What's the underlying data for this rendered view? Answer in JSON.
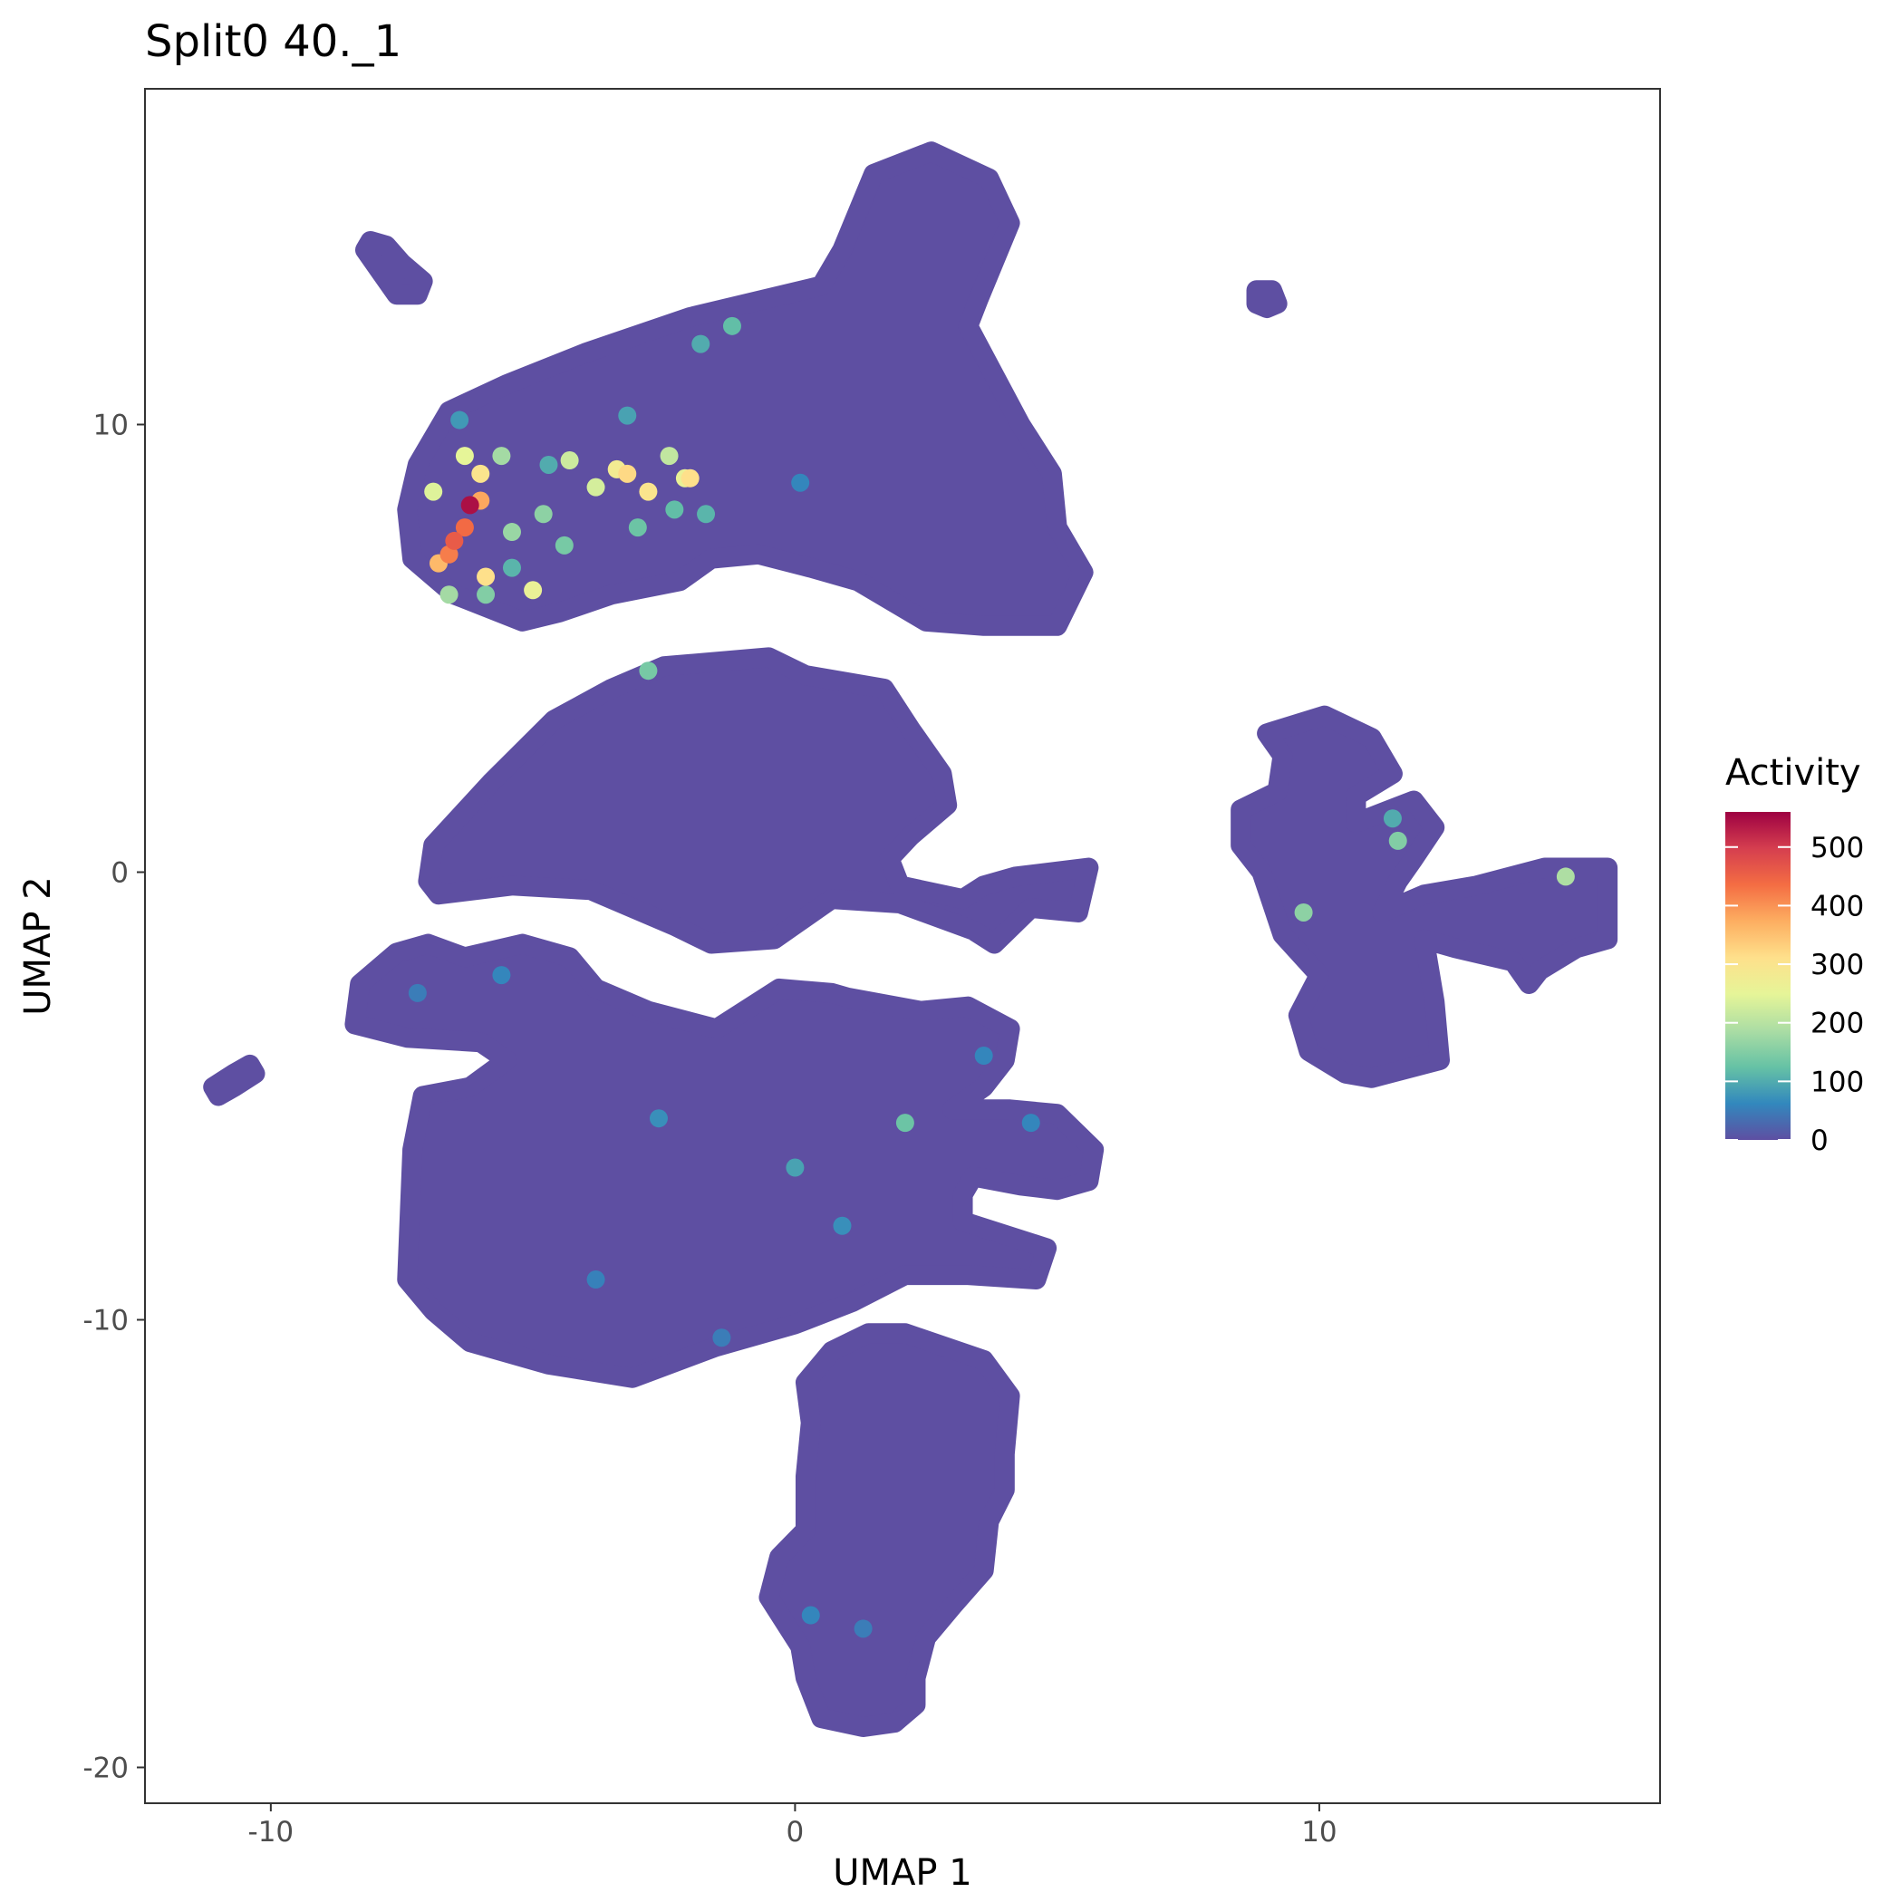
{
  "chart_data": {
    "type": "scatter",
    "title": "Split0 40._1",
    "xlabel": "UMAP 1",
    "ylabel": "UMAP 2",
    "xlim": [
      -12.4,
      16.5
    ],
    "ylim": [
      -20.8,
      17.5
    ],
    "x_ticks": [
      -10,
      0,
      10
    ],
    "y_ticks": [
      -20,
      -10,
      0,
      10
    ],
    "x_tick_labels": [
      "-10",
      "0",
      "10"
    ],
    "y_tick_labels": [
      "-20",
      "-10",
      "0",
      "10"
    ],
    "grid": false,
    "legend": {
      "title": "Activity",
      "position": "right",
      "scale": "Spectral (purple→blue→green→yellow→orange→red)",
      "min": 0,
      "max": 560,
      "breaks": [
        0,
        100,
        200,
        300,
        400,
        500
      ],
      "break_labels": [
        "0",
        "100",
        "200",
        "300",
        "400",
        "500"
      ],
      "colors": [
        "#5E4FA2",
        "#3288BD",
        "#66C2A5",
        "#ABDDA4",
        "#E6F598",
        "#FEE08B",
        "#FDAE61",
        "#F46D43",
        "#D53E4F",
        "#9E0142"
      ]
    },
    "point_color_base": "#5E4FA2",
    "clusters": [
      {
        "name": "upper",
        "polygon": [
          [
            -7.2,
            9.1
          ],
          [
            -6.6,
            10.3
          ],
          [
            -5.5,
            10.9
          ],
          [
            -4.0,
            11.6
          ],
          [
            -2.0,
            12.4
          ],
          [
            0.5,
            13.1
          ],
          [
            0.9,
            13.9
          ],
          [
            1.5,
            15.6
          ],
          [
            2.6,
            16.1
          ],
          [
            3.7,
            15.5
          ],
          [
            4.1,
            14.5
          ],
          [
            3.5,
            12.8
          ],
          [
            3.3,
            12.2
          ],
          [
            4.3,
            10.0
          ],
          [
            4.9,
            8.9
          ],
          [
            5.0,
            7.7
          ],
          [
            5.5,
            6.7
          ],
          [
            5.0,
            5.5
          ],
          [
            3.6,
            5.5
          ],
          [
            2.5,
            5.6
          ],
          [
            1.2,
            6.5
          ],
          [
            0.3,
            6.8
          ],
          [
            -0.7,
            7.1
          ],
          [
            -1.6,
            7.0
          ],
          [
            -2.2,
            6.5
          ],
          [
            -3.5,
            6.2
          ],
          [
            -4.5,
            5.8
          ],
          [
            -5.2,
            5.6
          ],
          [
            -6.5,
            6.2
          ],
          [
            -7.3,
            7.0
          ],
          [
            -7.4,
            8.1
          ]
        ]
      },
      {
        "name": "middle",
        "polygon": [
          [
            -6.9,
            0.6
          ],
          [
            -5.8,
            2.0
          ],
          [
            -4.6,
            3.4
          ],
          [
            -3.5,
            4.1
          ],
          [
            -2.5,
            4.6
          ],
          [
            -0.5,
            4.8
          ],
          [
            0.2,
            4.4
          ],
          [
            1.7,
            4.1
          ],
          [
            2.2,
            3.2
          ],
          [
            2.8,
            2.2
          ],
          [
            2.9,
            1.5
          ],
          [
            2.2,
            0.8
          ],
          [
            1.8,
            0.3
          ],
          [
            2.0,
            -0.3
          ],
          [
            3.2,
            -0.6
          ],
          [
            3.6,
            -0.3
          ],
          [
            4.2,
            -0.1
          ],
          [
            5.6,
            0.1
          ],
          [
            5.4,
            -0.9
          ],
          [
            4.5,
            -0.8
          ],
          [
            3.8,
            -1.6
          ],
          [
            3.4,
            -1.3
          ],
          [
            2.0,
            -0.7
          ],
          [
            0.7,
            -0.6
          ],
          [
            -0.4,
            -1.5
          ],
          [
            -1.6,
            -1.6
          ],
          [
            -2.3,
            -1.2
          ],
          [
            -3.9,
            -0.4
          ],
          [
            -5.4,
            -0.3
          ],
          [
            -6.8,
            -0.5
          ],
          [
            -7.0,
            -0.2
          ]
        ]
      },
      {
        "name": "lower",
        "polygon": [
          [
            -8.3,
            -2.5
          ],
          [
            -7.6,
            -1.8
          ],
          [
            -7.0,
            -1.6
          ],
          [
            -6.3,
            -1.9
          ],
          [
            -5.2,
            -1.6
          ],
          [
            -4.3,
            -1.9
          ],
          [
            -3.8,
            -2.6
          ],
          [
            -2.8,
            -3.1
          ],
          [
            -1.5,
            -3.5
          ],
          [
            -0.3,
            -2.6
          ],
          [
            0.7,
            -2.7
          ],
          [
            1.0,
            -2.8
          ],
          [
            2.4,
            -3.1
          ],
          [
            3.3,
            -3.0
          ],
          [
            4.1,
            -3.5
          ],
          [
            4.0,
            -4.2
          ],
          [
            3.6,
            -4.8
          ],
          [
            3.0,
            -5.3
          ],
          [
            4.1,
            -5.3
          ],
          [
            5.0,
            -5.4
          ],
          [
            5.7,
            -6.2
          ],
          [
            5.6,
            -6.9
          ],
          [
            5.0,
            -7.1
          ],
          [
            4.3,
            -7.0
          ],
          [
            3.4,
            -6.8
          ],
          [
            3.2,
            -7.2
          ],
          [
            3.2,
            -7.8
          ],
          [
            4.8,
            -8.4
          ],
          [
            4.6,
            -9.1
          ],
          [
            3.3,
            -9.0
          ],
          [
            2.1,
            -9.0
          ],
          [
            1.1,
            -9.6
          ],
          [
            0.0,
            -10.1
          ],
          [
            -1.5,
            -10.6
          ],
          [
            -3.1,
            -11.3
          ],
          [
            -4.7,
            -11.0
          ],
          [
            -6.2,
            -10.5
          ],
          [
            -6.9,
            -9.8
          ],
          [
            -7.4,
            -9.1
          ],
          [
            -7.3,
            -6.2
          ],
          [
            -7.1,
            -5.0
          ],
          [
            -6.2,
            -4.8
          ],
          [
            -5.5,
            -4.2
          ],
          [
            -6.0,
            -3.8
          ],
          [
            -7.4,
            -3.7
          ],
          [
            -8.4,
            -3.4
          ]
        ]
      },
      {
        "name": "bottom",
        "polygon": [
          [
            0.7,
            -10.7
          ],
          [
            1.4,
            -10.3
          ],
          [
            2.1,
            -10.3
          ],
          [
            3.6,
            -10.9
          ],
          [
            4.1,
            -11.7
          ],
          [
            4.0,
            -13.0
          ],
          [
            4.0,
            -13.8
          ],
          [
            3.7,
            -14.5
          ],
          [
            3.6,
            -15.6
          ],
          [
            3.0,
            -16.4
          ],
          [
            2.5,
            -17.1
          ],
          [
            2.3,
            -18.0
          ],
          [
            2.3,
            -18.6
          ],
          [
            1.9,
            -19.0
          ],
          [
            1.3,
            -19.1
          ],
          [
            0.5,
            -18.9
          ],
          [
            0.2,
            -18.0
          ],
          [
            0.1,
            -17.3
          ],
          [
            -0.5,
            -16.2
          ],
          [
            -0.3,
            -15.3
          ],
          [
            0.2,
            -14.7
          ],
          [
            0.2,
            -13.5
          ],
          [
            0.3,
            -12.3
          ],
          [
            0.2,
            -11.4
          ]
        ]
      },
      {
        "name": "right",
        "polygon": [
          [
            9.0,
            3.1
          ],
          [
            10.1,
            3.5
          ],
          [
            11.0,
            3.0
          ],
          [
            11.4,
            2.2
          ],
          [
            10.7,
            1.7
          ],
          [
            10.7,
            1.1
          ],
          [
            11.8,
            1.6
          ],
          [
            12.2,
            1.0
          ],
          [
            11.8,
            0.3
          ],
          [
            11.5,
            -0.2
          ],
          [
            11.2,
            -0.9
          ],
          [
            12.0,
            -0.5
          ],
          [
            13.0,
            -0.3
          ],
          [
            14.3,
            0.1
          ],
          [
            15.5,
            0.1
          ],
          [
            15.5,
            -1.5
          ],
          [
            14.9,
            -1.7
          ],
          [
            14.2,
            -2.2
          ],
          [
            14.0,
            -2.5
          ],
          [
            13.7,
            -2.0
          ],
          [
            12.6,
            -1.7
          ],
          [
            12.0,
            -1.5
          ],
          [
            12.2,
            -2.9
          ],
          [
            12.3,
            -4.2
          ],
          [
            11.0,
            -4.6
          ],
          [
            10.5,
            -4.5
          ],
          [
            9.8,
            -4.0
          ],
          [
            9.6,
            -3.2
          ],
          [
            10.0,
            -2.3
          ],
          [
            9.3,
            -1.4
          ],
          [
            9.1,
            -0.7
          ],
          [
            8.9,
            0.0
          ],
          [
            8.5,
            0.6
          ],
          [
            8.5,
            1.4
          ],
          [
            9.2,
            1.8
          ],
          [
            9.3,
            2.6
          ]
        ]
      },
      {
        "name": "islet-topleft",
        "polygon": [
          [
            -8.1,
            14.1
          ],
          [
            -7.8,
            14.0
          ],
          [
            -7.5,
            13.6
          ],
          [
            -7.1,
            13.2
          ],
          [
            -7.2,
            12.9
          ],
          [
            -7.6,
            12.9
          ],
          [
            -7.9,
            13.4
          ],
          [
            -8.2,
            13.9
          ]
        ]
      },
      {
        "name": "islet-topright",
        "polygon": [
          [
            8.8,
            13.0
          ],
          [
            9.1,
            13.0
          ],
          [
            9.2,
            12.7
          ],
          [
            9.0,
            12.6
          ],
          [
            8.8,
            12.7
          ]
        ]
      },
      {
        "name": "islet-left",
        "polygon": [
          [
            -11.1,
            -4.8
          ],
          [
            -10.7,
            -4.5
          ],
          [
            -10.4,
            -4.3
          ],
          [
            -10.3,
            -4.5
          ],
          [
            -10.7,
            -4.8
          ],
          [
            -11.0,
            -5.0
          ]
        ]
      }
    ],
    "highlight_points": [
      {
        "x": -6.2,
        "y": 8.2,
        "value": 545
      },
      {
        "x": -6.5,
        "y": 7.4,
        "value": 460
      },
      {
        "x": -6.3,
        "y": 7.7,
        "value": 440
      },
      {
        "x": -6.6,
        "y": 7.1,
        "value": 420
      },
      {
        "x": -6.0,
        "y": 8.3,
        "value": 380
      },
      {
        "x": -6.8,
        "y": 6.9,
        "value": 360
      },
      {
        "x": -6.0,
        "y": 8.9,
        "value": 300
      },
      {
        "x": -5.9,
        "y": 6.6,
        "value": 310
      },
      {
        "x": -3.2,
        "y": 8.9,
        "value": 320
      },
      {
        "x": -2.8,
        "y": 8.5,
        "value": 300
      },
      {
        "x": -2.0,
        "y": 8.8,
        "value": 310
      },
      {
        "x": -3.4,
        "y": 9.0,
        "value": 280
      },
      {
        "x": -5.0,
        "y": 6.3,
        "value": 260
      },
      {
        "x": -6.3,
        "y": 9.3,
        "value": 250
      },
      {
        "x": -6.9,
        "y": 8.5,
        "value": 240
      },
      {
        "x": -3.8,
        "y": 8.6,
        "value": 230
      },
      {
        "x": -4.3,
        "y": 9.2,
        "value": 220
      },
      {
        "x": -2.4,
        "y": 9.3,
        "value": 210
      },
      {
        "x": -2.1,
        "y": 8.8,
        "value": 260
      },
      {
        "x": -5.6,
        "y": 9.3,
        "value": 180
      },
      {
        "x": -5.4,
        "y": 7.6,
        "value": 170
      },
      {
        "x": -4.8,
        "y": 8.0,
        "value": 160
      },
      {
        "x": -6.6,
        "y": 6.2,
        "value": 180
      },
      {
        "x": -5.9,
        "y": 6.2,
        "value": 150
      },
      {
        "x": -4.4,
        "y": 7.3,
        "value": 140
      },
      {
        "x": -3.0,
        "y": 7.7,
        "value": 130
      },
      {
        "x": -2.3,
        "y": 8.1,
        "value": 120
      },
      {
        "x": -1.7,
        "y": 8.0,
        "value": 110
      },
      {
        "x": -1.2,
        "y": 12.2,
        "value": 120
      },
      {
        "x": -1.8,
        "y": 11.8,
        "value": 100
      },
      {
        "x": -3.2,
        "y": 10.2,
        "value": 90
      },
      {
        "x": -4.7,
        "y": 9.1,
        "value": 100
      },
      {
        "x": -5.4,
        "y": 6.8,
        "value": 110
      },
      {
        "x": -6.4,
        "y": 10.1,
        "value": 80
      },
      {
        "x": -2.8,
        "y": 4.5,
        "value": 140
      },
      {
        "x": 0.1,
        "y": 8.7,
        "value": 60
      },
      {
        "x": 14.7,
        "y": -0.1,
        "value": 190
      },
      {
        "x": 9.7,
        "y": -0.9,
        "value": 160
      },
      {
        "x": 11.5,
        "y": 0.7,
        "value": 150
      },
      {
        "x": 11.4,
        "y": 1.2,
        "value": 100
      },
      {
        "x": 2.1,
        "y": -5.6,
        "value": 130
      },
      {
        "x": 0.0,
        "y": -6.6,
        "value": 90
      },
      {
        "x": -2.6,
        "y": -5.5,
        "value": 70
      },
      {
        "x": 0.9,
        "y": -7.9,
        "value": 70
      },
      {
        "x": 4.5,
        "y": -5.6,
        "value": 60
      },
      {
        "x": 3.6,
        "y": -4.1,
        "value": 60
      },
      {
        "x": -5.6,
        "y": -2.3,
        "value": 60
      },
      {
        "x": -7.2,
        "y": -2.7,
        "value": 50
      },
      {
        "x": -3.8,
        "y": -9.1,
        "value": 55
      },
      {
        "x": -1.4,
        "y": -10.4,
        "value": 50
      },
      {
        "x": 0.3,
        "y": -16.6,
        "value": 60
      },
      {
        "x": 1.3,
        "y": -16.9,
        "value": 50
      }
    ]
  }
}
